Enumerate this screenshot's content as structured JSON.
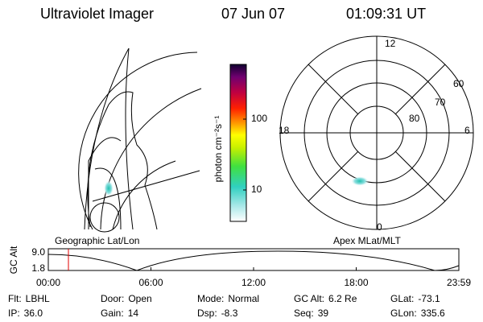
{
  "header": {
    "instrument": "Ultraviolet Imager",
    "date": "07 Jun 07",
    "time": "01:09:31 UT"
  },
  "colorbar": {
    "label": "photon cm⁻²s⁻¹",
    "ticks": [
      "100",
      "10"
    ]
  },
  "polar": {
    "mlt_labels": [
      "12",
      "18",
      "6",
      "0"
    ],
    "lat_labels": [
      "60",
      "70",
      "80"
    ]
  },
  "panels": {
    "left": "Geographic Lat/Lon",
    "right": "Apex MLat/MLT"
  },
  "timeline": {
    "label": "GC Alt",
    "y_labels": [
      "9.0",
      "1.8"
    ],
    "times": [
      "00:00",
      "06:00",
      "12:00",
      "18:00",
      "23:59"
    ]
  },
  "status": [
    [
      {
        "label": "Flt:",
        "value": "LBHL"
      },
      {
        "label": "Door:",
        "value": "Open"
      },
      {
        "label": "Mode:",
        "value": "Normal"
      },
      {
        "label": "GC Alt:",
        "value": "6.2 Re"
      },
      {
        "label": "GLat:",
        "value": "-73.1"
      }
    ],
    [
      {
        "label": "IP:",
        "value": "36.0"
      },
      {
        "label": "Gain:",
        "value": "14"
      },
      {
        "label": "Dsp:",
        "value": "-8.3"
      },
      {
        "label": "Seq:",
        "value": "39"
      },
      {
        "label": "GLon:",
        "value": "335.6"
      }
    ]
  ]
}
